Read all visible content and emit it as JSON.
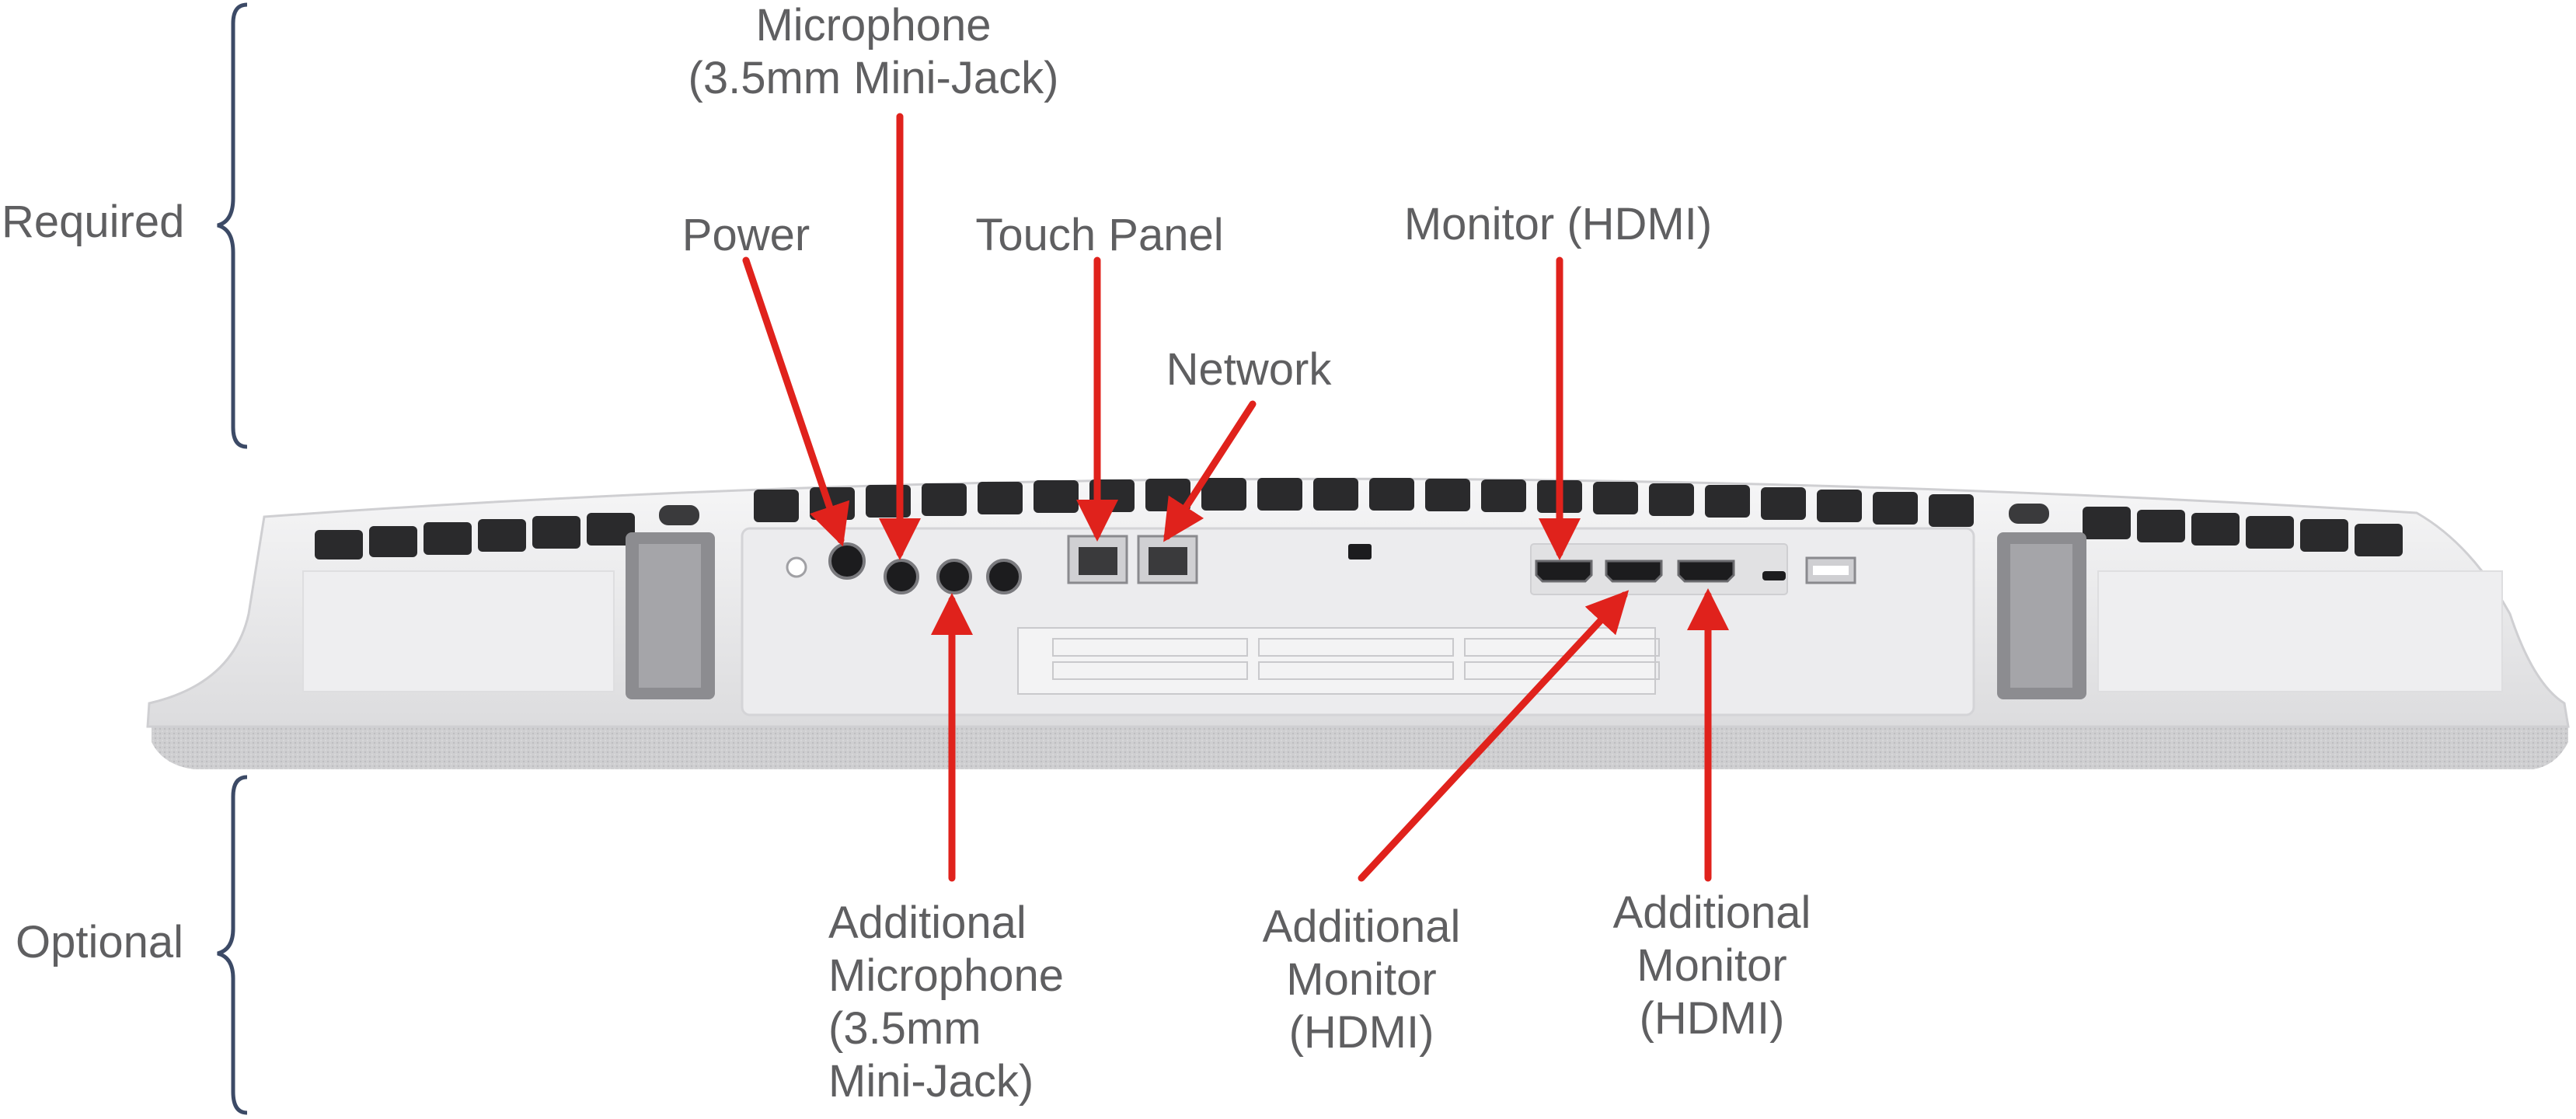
{
  "groups": {
    "required": "Required",
    "optional": "Optional"
  },
  "labels": {
    "power": "Power",
    "microphone_1": "Microphone",
    "microphone_2": "(3.5mm Mini-Jack)",
    "touch_panel": "Touch Panel",
    "network": "Network",
    "monitor_hdmi": "Monitor (HDMI)",
    "add_mic_1": "Additional",
    "add_mic_2": "Microphone",
    "add_mic_3": "(3.5mm",
    "add_mic_4": "Mini-Jack)",
    "add_mon1_1": "Additional",
    "add_mon1_2": "Monitor",
    "add_mon1_3": "(HDMI)",
    "add_mon2_1": "Additional",
    "add_mon2_2": "Monitor",
    "add_mon2_3": "(HDMI)"
  },
  "colors": {
    "arrow": "#e0221c",
    "label_text": "#5f5f61",
    "bracket": "#3c4a66",
    "device_body": "#e9e9eb",
    "device_panel": "#f4f4f5",
    "vent": "#2a2a2c",
    "fabric": "#c9c9cb"
  },
  "icons": {
    "ports": [
      "power-jack-icon",
      "mic-jack-icon",
      "rj45-port-icon",
      "hdmi-port-icon",
      "usb-port-icon",
      "kensington-lock-icon"
    ]
  }
}
